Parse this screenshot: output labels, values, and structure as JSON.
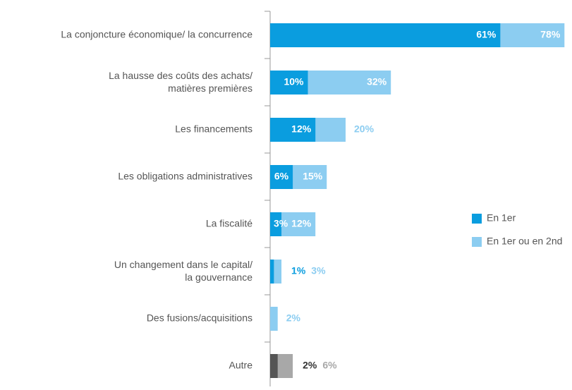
{
  "chart_data": {
    "type": "hbar_overlap",
    "categories": [
      "La conjoncture économique/ la concurrence",
      "La hausse des coûts des achats/\nmatières premières",
      "Les financements",
      "Les obligations administratives",
      "La fiscalité",
      "Un changement dans le capital/\nla gouvernance",
      "Des fusions/acquisitions",
      "Autre"
    ],
    "series": [
      {
        "name": "En 1er",
        "color": "#0a9ddf",
        "colors": [
          "#0a9ddf",
          "#0a9ddf",
          "#0a9ddf",
          "#0a9ddf",
          "#0a9ddf",
          "#0a9ddf",
          "#0a9ddf",
          "#555555"
        ],
        "values": [
          61,
          10,
          12,
          6,
          3,
          1,
          null,
          2
        ],
        "value_labels": [
          "61%",
          "10%",
          "12%",
          "6%",
          "3%",
          "1%",
          null,
          "2%"
        ]
      },
      {
        "name": "En 1er ou en 2nd",
        "color": "#8ccdf1",
        "colors": [
          "#8ccdf1",
          "#8ccdf1",
          "#8ccdf1",
          "#8ccdf1",
          "#8ccdf1",
          "#8ccdf1",
          "#8ccdf1",
          "#a8a8a8"
        ],
        "values": [
          78,
          32,
          20,
          15,
          12,
          3,
          2,
          6
        ],
        "value_labels": [
          "78%",
          "32%",
          "20%",
          "15%",
          "12%",
          "3%",
          "2%",
          "6%"
        ]
      }
    ],
    "xlim": [
      0,
      80
    ],
    "legend": "right"
  }
}
